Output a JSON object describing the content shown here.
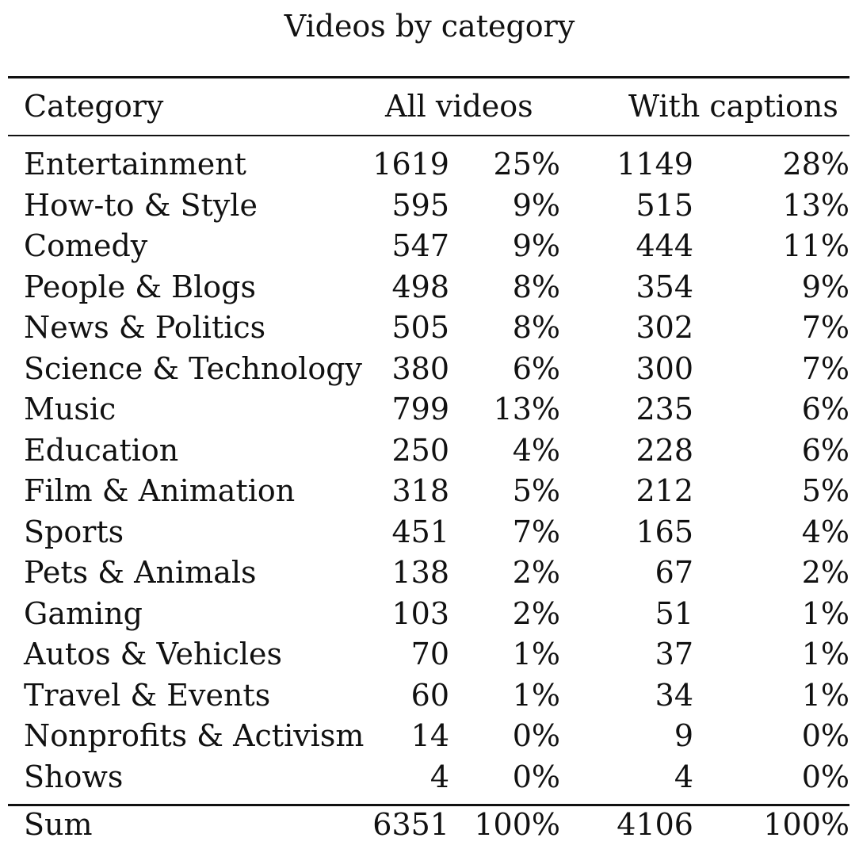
{
  "table": {
    "caption": "Videos by category",
    "headers": {
      "category": "Category",
      "all_videos": "All videos",
      "with_captions": "With captions"
    },
    "rows": [
      {
        "category": "Entertainment",
        "all_count": "1619",
        "all_pct": "25%",
        "cap_count": "1149",
        "cap_pct": "28%"
      },
      {
        "category": "How-to & Style",
        "all_count": "595",
        "all_pct": "9%",
        "cap_count": "515",
        "cap_pct": "13%"
      },
      {
        "category": "Comedy",
        "all_count": "547",
        "all_pct": "9%",
        "cap_count": "444",
        "cap_pct": "11%"
      },
      {
        "category": "People & Blogs",
        "all_count": "498",
        "all_pct": "8%",
        "cap_count": "354",
        "cap_pct": "9%"
      },
      {
        "category": "News & Politics",
        "all_count": "505",
        "all_pct": "8%",
        "cap_count": "302",
        "cap_pct": "7%"
      },
      {
        "category": "Science & Technology",
        "all_count": "380",
        "all_pct": "6%",
        "cap_count": "300",
        "cap_pct": "7%"
      },
      {
        "category": "Music",
        "all_count": "799",
        "all_pct": "13%",
        "cap_count": "235",
        "cap_pct": "6%"
      },
      {
        "category": "Education",
        "all_count": "250",
        "all_pct": "4%",
        "cap_count": "228",
        "cap_pct": "6%"
      },
      {
        "category": "Film & Animation",
        "all_count": "318",
        "all_pct": "5%",
        "cap_count": "212",
        "cap_pct": "5%"
      },
      {
        "category": "Sports",
        "all_count": "451",
        "all_pct": "7%",
        "cap_count": "165",
        "cap_pct": "4%"
      },
      {
        "category": "Pets & Animals",
        "all_count": "138",
        "all_pct": "2%",
        "cap_count": "67",
        "cap_pct": "2%"
      },
      {
        "category": "Gaming",
        "all_count": "103",
        "all_pct": "2%",
        "cap_count": "51",
        "cap_pct": "1%"
      },
      {
        "category": "Autos & Vehicles",
        "all_count": "70",
        "all_pct": "1%",
        "cap_count": "37",
        "cap_pct": "1%"
      },
      {
        "category": "Travel & Events",
        "all_count": "60",
        "all_pct": "1%",
        "cap_count": "34",
        "cap_pct": "1%"
      },
      {
        "category": "Nonprofits & Activism",
        "all_count": "14",
        "all_pct": "0%",
        "cap_count": "9",
        "cap_pct": "0%"
      },
      {
        "category": "Shows",
        "all_count": "4",
        "all_pct": "0%",
        "cap_count": "4",
        "cap_pct": "0%"
      }
    ],
    "total": {
      "category": "Sum",
      "all_count": "6351",
      "all_pct": "100%",
      "cap_count": "4106",
      "cap_pct": "100%"
    }
  }
}
